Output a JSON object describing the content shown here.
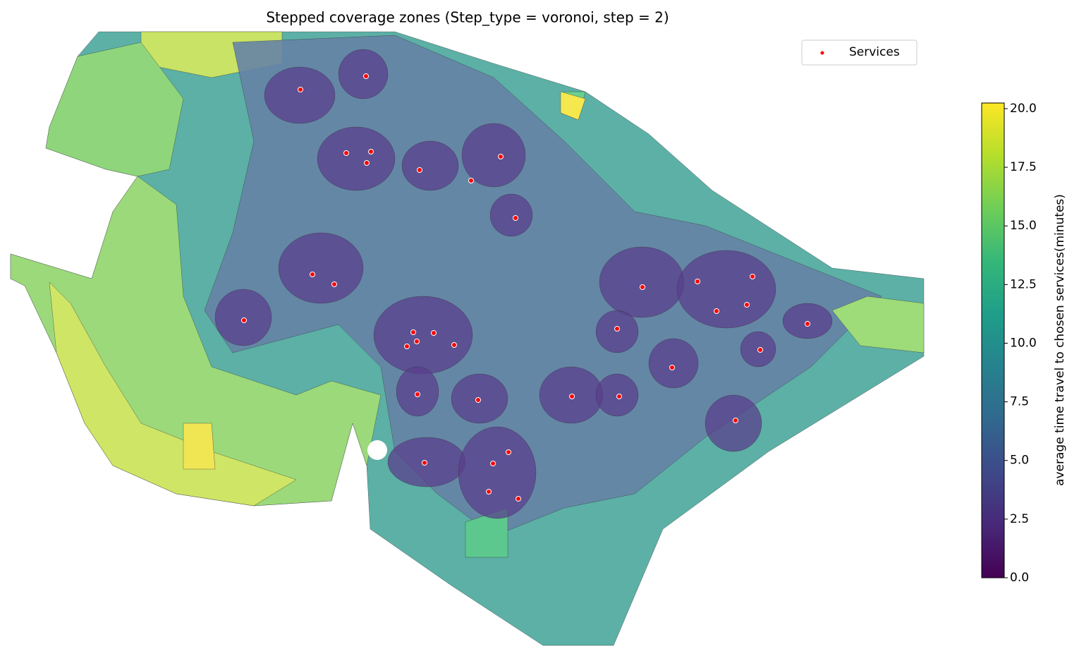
{
  "chart_data": {
    "type": "map",
    "title": "Stepped coverage zones (Step_type = voronoi, step = 2)",
    "legend": "Services",
    "colorbar_label": "average time travel to chosen services(minutes)",
    "colormap": "viridis",
    "clim": [
      0,
      20.24
    ],
    "cticks": [
      {
        "value": 0,
        "label": "0.0"
      },
      {
        "value": 2.5,
        "label": "2.5"
      },
      {
        "value": 5,
        "label": "5.0"
      },
      {
        "value": 7.5,
        "label": "7.5"
      },
      {
        "value": 10,
        "label": "10.0"
      },
      {
        "value": 12.5,
        "label": "12.5"
      },
      {
        "value": 15,
        "label": "15.0"
      },
      {
        "value": 17.5,
        "label": "17.5"
      },
      {
        "value": 20,
        "label": "20.0"
      }
    ]
  }
}
